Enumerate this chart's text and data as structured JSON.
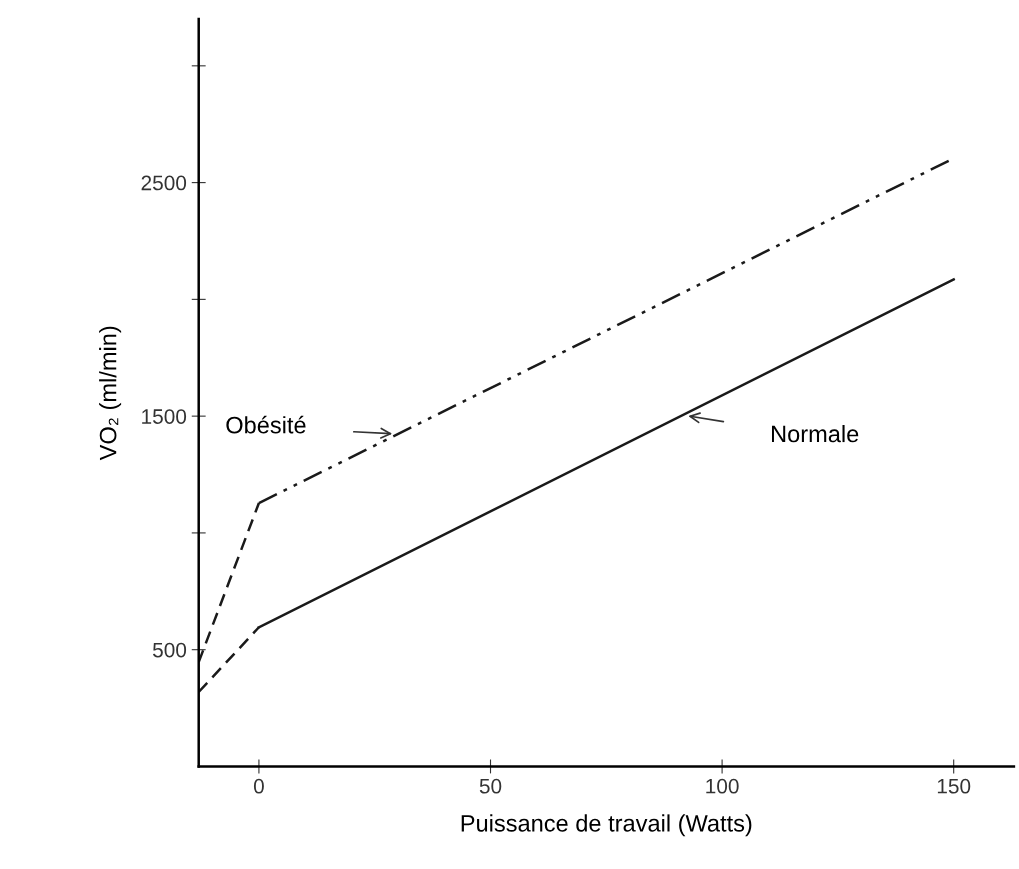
{
  "chart_data": {
    "type": "line",
    "xlabel": "Puissance de travail (Watts)",
    "ylabel": "VO₂ (ml/min)",
    "xlim": [
      -13,
      163
    ],
    "ylim": [
      0,
      3200
    ],
    "xticks": [
      0,
      50,
      100,
      150
    ],
    "yticks": [
      500,
      {
        "value": 1000,
        "label": null
      },
      1500,
      {
        "value": 2000,
        "label": null
      },
      2500,
      {
        "value": 3000,
        "label": null
      }
    ],
    "grid": false,
    "legend": false,
    "marker": "none",
    "series": [
      {
        "color": "#1a1a1a",
        "line_style": "dashed",
        "x": [
          -13,
          0
        ],
        "values": [
          447,
          1128
        ]
      },
      {
        "name": "Obésité",
        "color": "#1a1a1a",
        "line_style": "dotted",
        "x": [
          0,
          150
        ],
        "values": [
          1128,
          2604
        ]
      },
      {
        "color": "#1a1a1a",
        "line_style": "dashed",
        "x": [
          -13,
          0
        ],
        "values": [
          319,
          596
        ]
      },
      {
        "name": "Normale",
        "color": "#1a1a1a",
        "line_style": "solid",
        "x": [
          0,
          150
        ],
        "values": [
          596,
          2085
        ]
      }
    ]
  }
}
